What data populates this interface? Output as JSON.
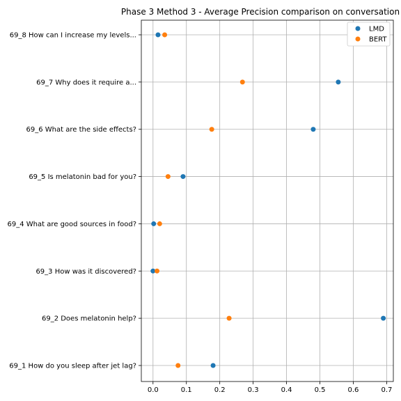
{
  "chart_data": {
    "type": "scatter",
    "title": "Phase 3 Method 3 - Average Precision comparison on conversation",
    "xlabel": "",
    "ylabel": "",
    "xlim": [
      -0.035,
      0.72
    ],
    "x_ticks": [
      "0.0",
      "0.1",
      "0.2",
      "0.3",
      "0.4",
      "0.5",
      "0.6",
      "0.7"
    ],
    "grid": true,
    "legend_position": "top-right",
    "categories": [
      "69_1 How do you sleep after jet lag?",
      "69_2 Does melatonin help?",
      "69_3 How was it discovered?",
      "69_4 What are good sources in food?",
      "69_5 Is melatonin bad for you?",
      "69_6 What are the side effects?",
      "69_7 Why does it require a...",
      "69_8 How can I increase my levels..."
    ],
    "series": [
      {
        "name": "LMD",
        "color": "#1f77b4",
        "values": [
          0.18,
          0.69,
          0.0,
          0.002,
          0.09,
          0.48,
          0.555,
          0.015
        ]
      },
      {
        "name": "BERT",
        "color": "#ff7f0e",
        "values": [
          0.075,
          0.228,
          0.012,
          0.02,
          0.045,
          0.176,
          0.268,
          0.035
        ]
      }
    ]
  }
}
